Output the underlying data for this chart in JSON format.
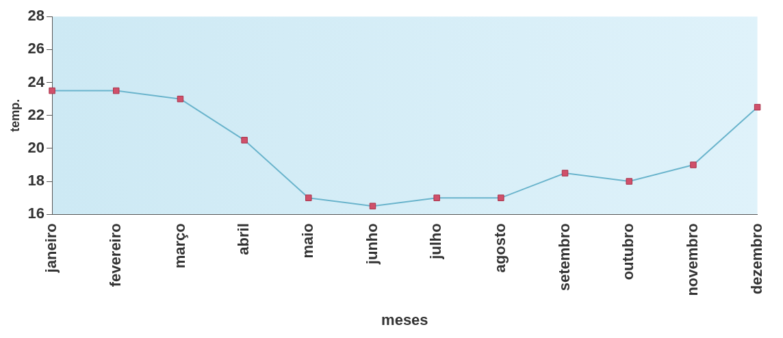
{
  "chart_data": {
    "type": "line",
    "xlabel": "meses",
    "ylabel": "temp.",
    "categories": [
      "janeiro",
      "fevereiro",
      "março",
      "abril",
      "maio",
      "junho",
      "julho",
      "agosto",
      "setembro",
      "outubro",
      "novembro",
      "dezembro"
    ],
    "series": [
      {
        "color": "#6ab4cc",
        "values": [
          23.5,
          23.5,
          23,
          20.5,
          17,
          16.5,
          17,
          17,
          18.5,
          18,
          19,
          22.5
        ]
      }
    ],
    "ylim": [
      16,
      28
    ],
    "yticks": [
      16,
      18,
      20,
      22,
      24,
      26,
      28
    ],
    "marker": "square",
    "grid": false,
    "legend": false
  }
}
